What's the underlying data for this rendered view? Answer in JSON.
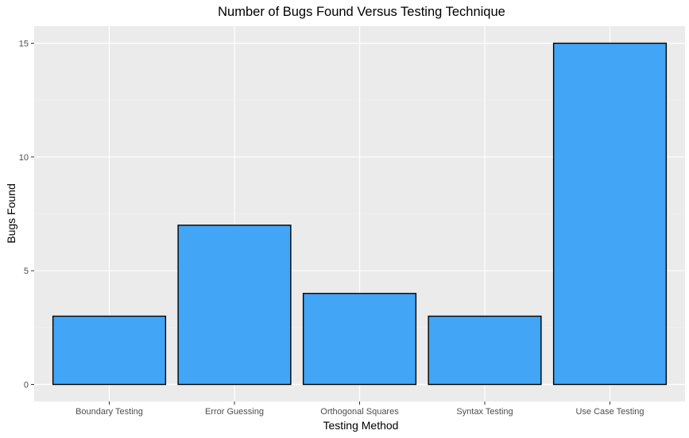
{
  "chart_data": {
    "type": "bar",
    "title": "Number of Bugs Found Versus Testing Technique",
    "xlabel": "Testing Method",
    "ylabel": "Bugs Found",
    "categories": [
      "Boundary Testing",
      "Error Guessing",
      "Orthogonal Squares",
      "Syntax Testing",
      "Use Case Testing"
    ],
    "values": [
      3,
      7,
      4,
      3,
      15
    ],
    "ylim": [
      -0.75,
      15.75
    ],
    "yticks": [
      0,
      5,
      10,
      15
    ],
    "ytick_labels": [
      "0",
      "5",
      "10",
      "15"
    ],
    "grid": true,
    "legend": "none"
  },
  "colors": {
    "bar_fill": "#42A5F5",
    "bar_outline": "#000000",
    "panel_background": "#EBEBEB",
    "grid_major": "#FFFFFF",
    "grid_minor": "#F2F2F2",
    "tick_text": "#4D4D4D",
    "tick_mark": "#333333"
  }
}
